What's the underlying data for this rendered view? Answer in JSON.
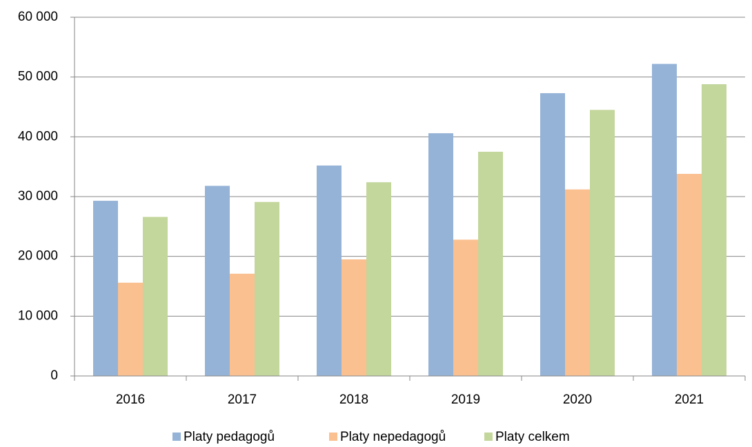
{
  "chart_data": {
    "type": "bar",
    "categories": [
      "2016",
      "2017",
      "2018",
      "2019",
      "2020",
      "2021"
    ],
    "series": [
      {
        "name": "Platy pedagogů",
        "color": "#95b3d7",
        "values": [
          29300,
          31800,
          35200,
          40600,
          47300,
          52200
        ]
      },
      {
        "name": "Platy nepedagogů",
        "color": "#fac090",
        "values": [
          15600,
          17100,
          19500,
          22800,
          31200,
          33800
        ]
      },
      {
        "name": "Platy celkem",
        "color": "#c3d69b",
        "values": [
          26600,
          29100,
          32400,
          37500,
          44500,
          48800
        ]
      }
    ],
    "ylim": [
      0,
      60000
    ],
    "yticks": [
      0,
      {
        "value": 10000,
        "label": "10 000"
      },
      {
        "value": 20000,
        "label": "20 000"
      },
      {
        "value": 30000,
        "label": "30 000"
      },
      {
        "value": 40000,
        "label": "40 000"
      },
      {
        "value": 50000,
        "label": "50 000"
      },
      {
        "value": 60000,
        "label": "60 000"
      }
    ],
    "grid": true,
    "legend": "bottom"
  }
}
